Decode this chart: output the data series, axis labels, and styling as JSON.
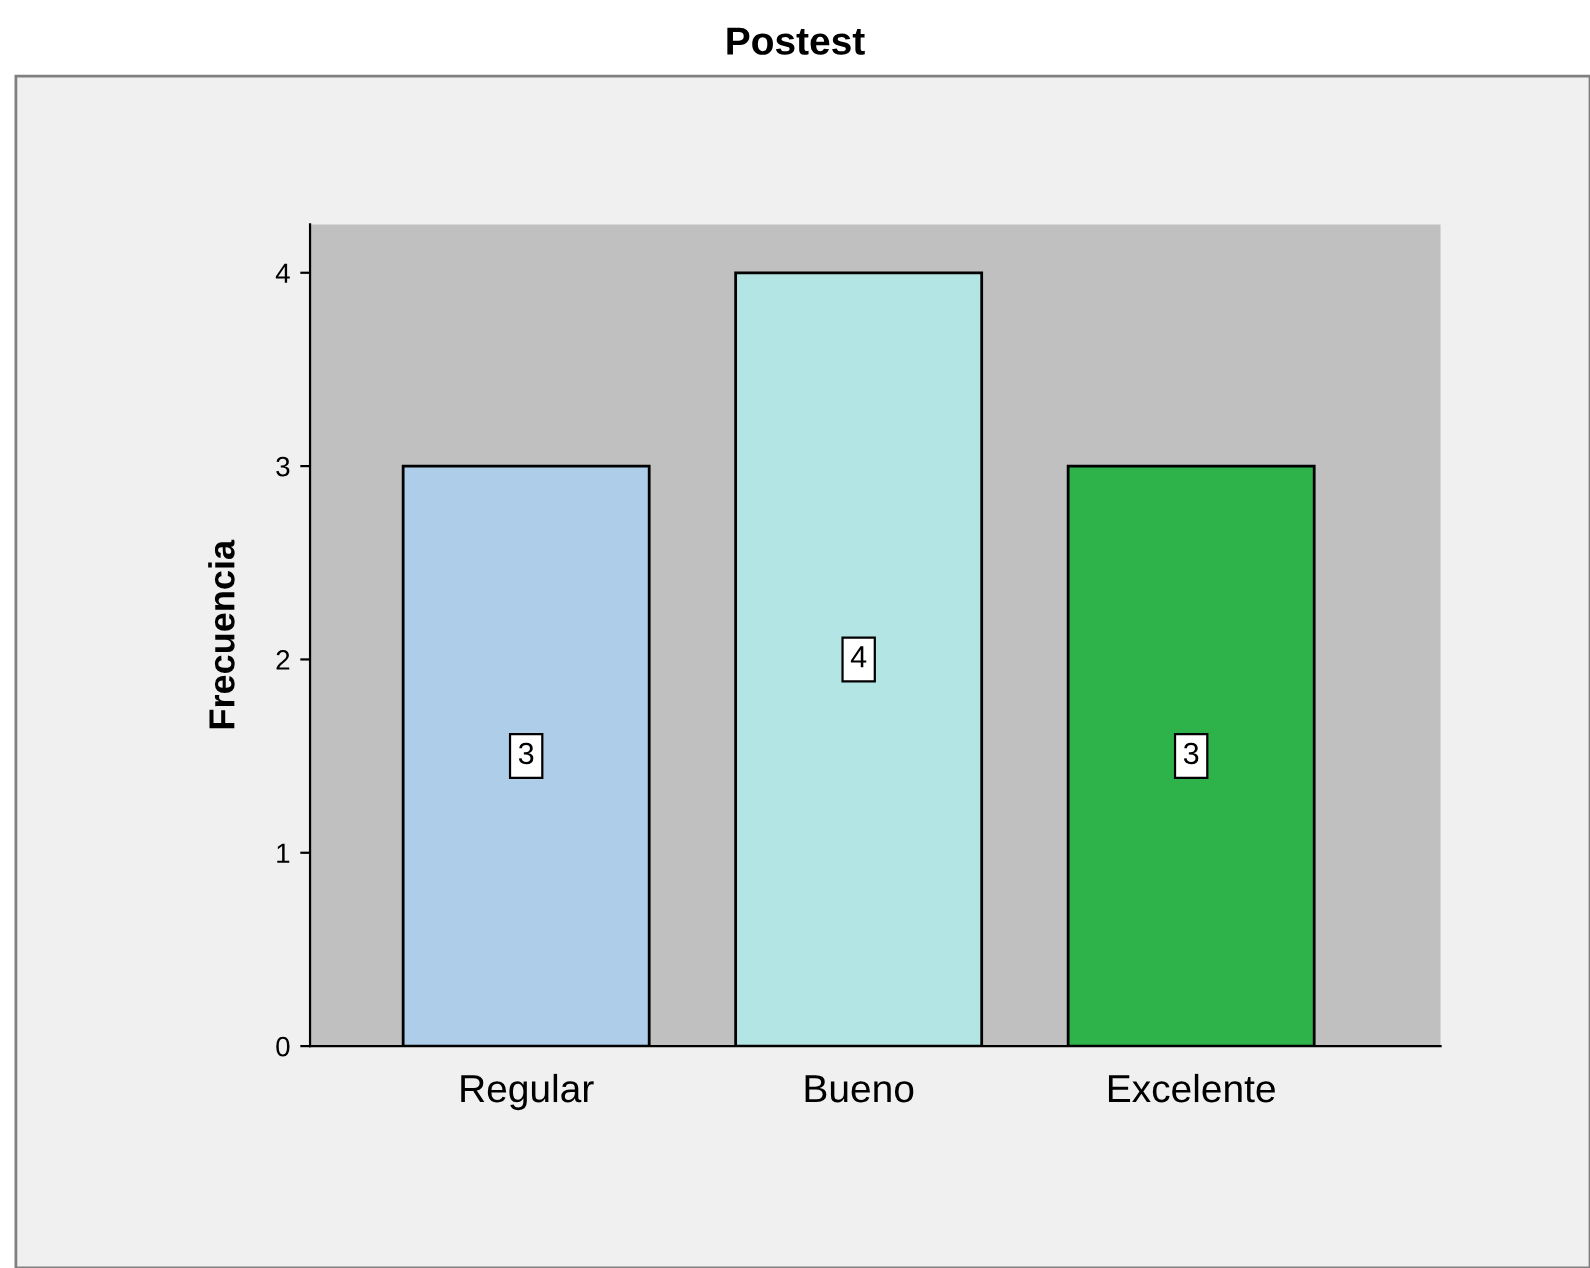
{
  "chart_data": {
    "type": "bar",
    "title": "Postest",
    "ylabel": "Frecuencia",
    "categories": [
      "Regular",
      "Bueno",
      "Excelente"
    ],
    "values": [
      3,
      4,
      3
    ],
    "colors": [
      "#aecde9",
      "#b3e5e5",
      "#2eb34a"
    ],
    "ylim": [
      0,
      4.25
    ],
    "yticks": [
      0,
      1,
      2,
      3,
      4
    ],
    "grid": false,
    "data_labels": true
  }
}
